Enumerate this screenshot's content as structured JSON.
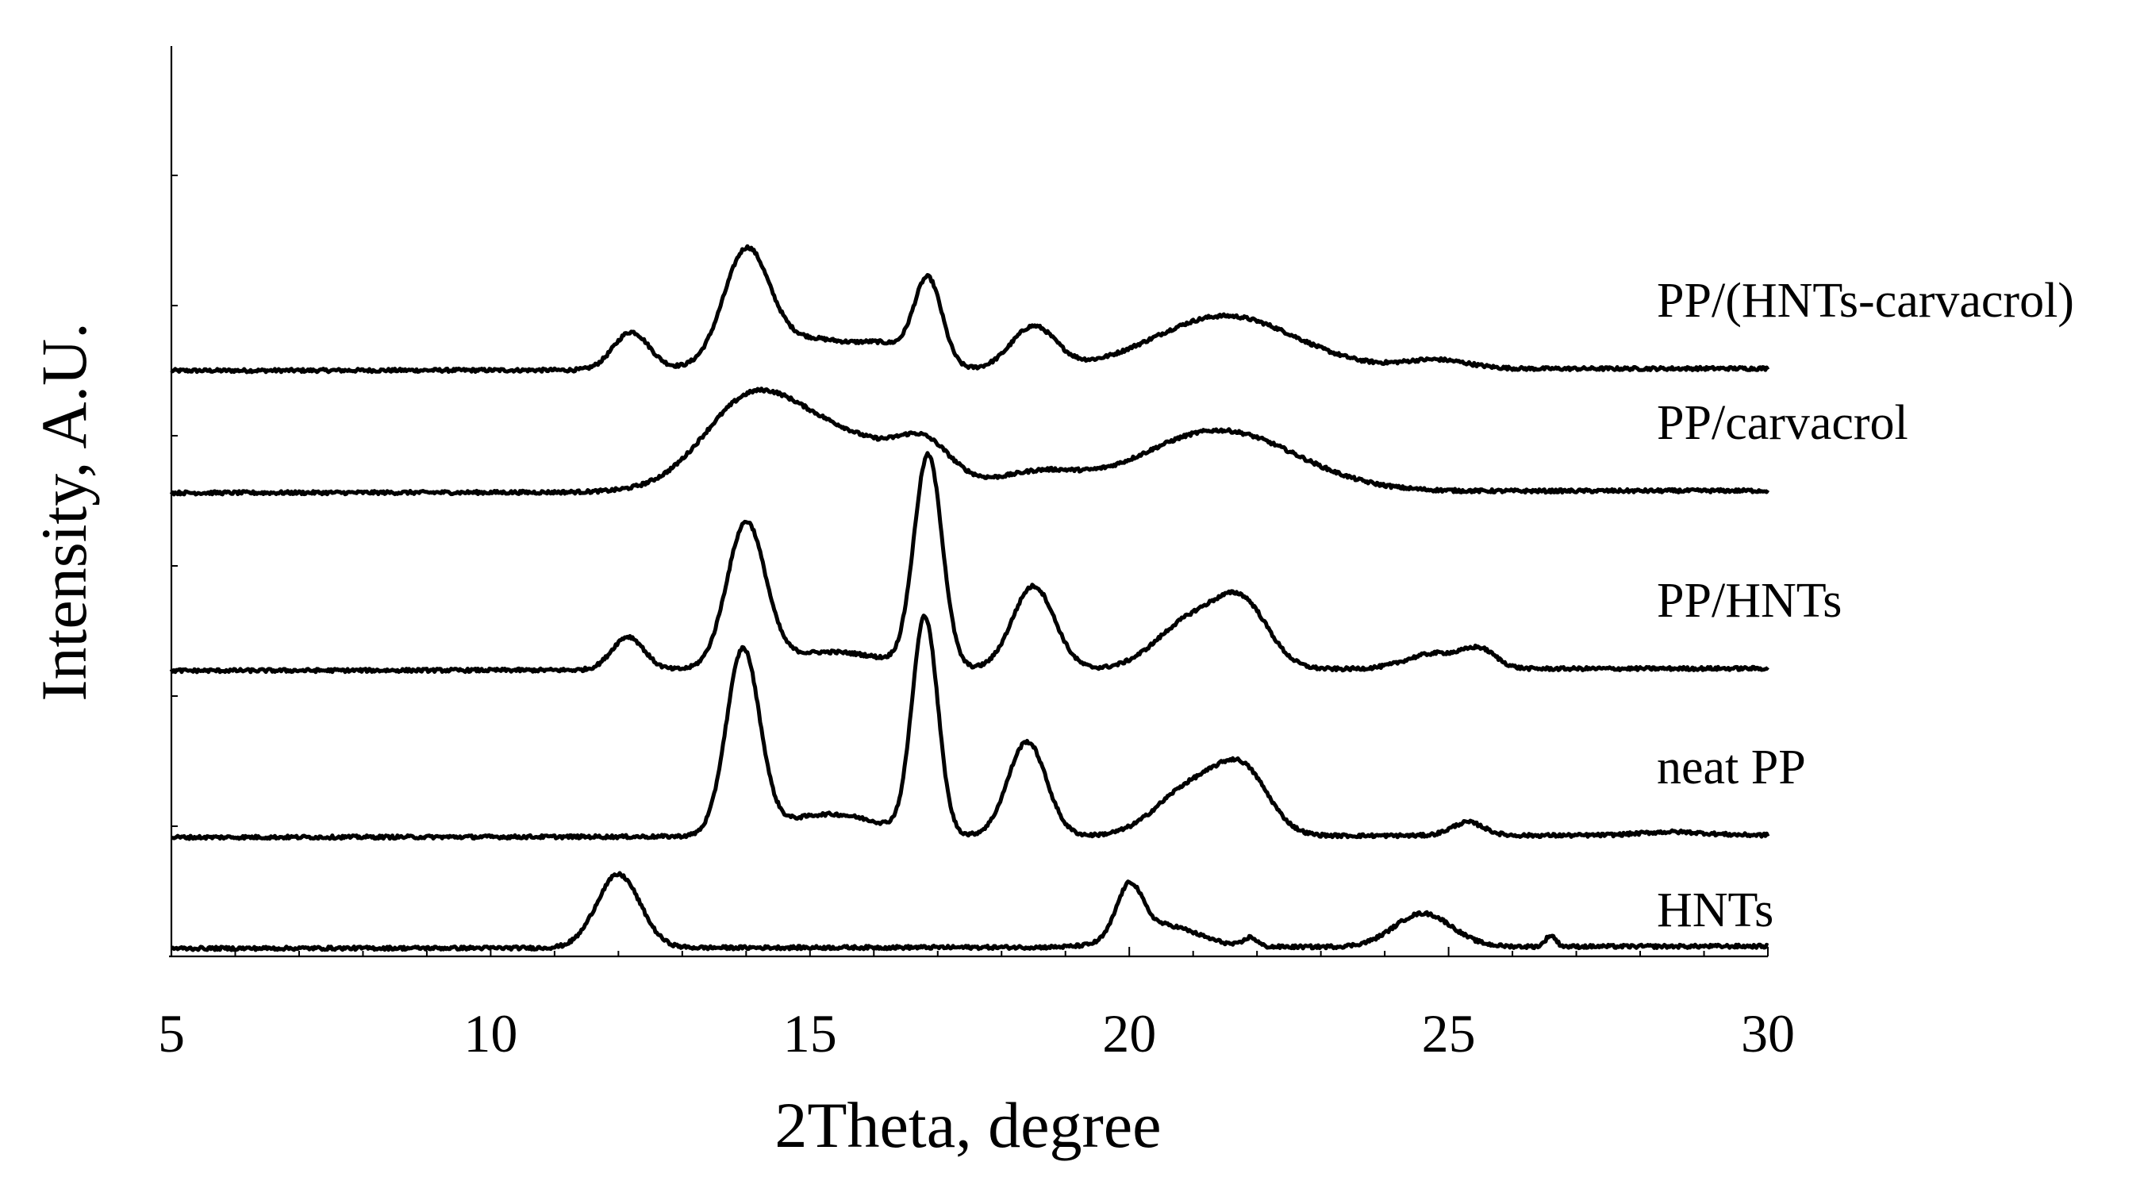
{
  "chart_data": {
    "type": "line",
    "title": "",
    "xlabel": "2Theta, degree",
    "ylabel": "Intensity, A.U.",
    "xlim": [
      5,
      30
    ],
    "xticks": [
      5,
      10,
      15,
      20,
      25,
      30
    ],
    "xtick_labels": [
      "5",
      "10",
      "15",
      "20",
      "25",
      "30"
    ],
    "y_axis": "arbitrary intensity, curves vertically offset",
    "grid": false,
    "legend": "labels at right end of each curve",
    "series": [
      {
        "name": "PP/(HNTs-carvacrol)",
        "offset": 5.2,
        "peaks": [
          [
            12.2,
            0.34,
            0.28
          ],
          [
            14.0,
            0.95,
            0.35
          ],
          [
            15.0,
            0.28,
            0.9
          ],
          [
            16.2,
            0.12,
            0.35
          ],
          [
            16.85,
            0.78,
            0.22
          ],
          [
            18.5,
            0.38,
            0.35
          ],
          [
            21.5,
            0.48,
            1.1
          ],
          [
            24.8,
            0.08,
            0.5
          ]
        ]
      },
      {
        "name": "PP/carvacrol",
        "offset": 4.1,
        "peaks": [
          [
            14.0,
            0.55,
            0.7
          ],
          [
            15.2,
            0.55,
            1.2
          ],
          [
            16.8,
            0.28,
            0.4
          ],
          [
            18.6,
            0.15,
            0.6
          ],
          [
            21.4,
            0.55,
            1.2
          ]
        ]
      },
      {
        "name": "PP/HNTs",
        "offset": 2.5,
        "peaks": [
          [
            12.15,
            0.3,
            0.25
          ],
          [
            14.0,
            1.28,
            0.3
          ],
          [
            15.3,
            0.16,
            0.9
          ],
          [
            16.85,
            1.9,
            0.22
          ],
          [
            18.5,
            0.75,
            0.33
          ],
          [
            21.0,
            0.45,
            0.55
          ],
          [
            21.8,
            0.5,
            0.4
          ],
          [
            24.8,
            0.14,
            0.45
          ],
          [
            25.5,
            0.15,
            0.25
          ]
        ]
      },
      {
        "name": "neat PP",
        "offset": 1.0,
        "peaks": [
          [
            13.95,
            1.65,
            0.26
          ],
          [
            15.3,
            0.2,
            0.8
          ],
          [
            16.8,
            1.95,
            0.2
          ],
          [
            18.4,
            0.85,
            0.3
          ],
          [
            21.0,
            0.45,
            0.55
          ],
          [
            21.8,
            0.5,
            0.4
          ],
          [
            25.3,
            0.12,
            0.25
          ],
          [
            28.5,
            0.03,
            0.5
          ]
        ]
      },
      {
        "name": "HNTs",
        "offset": 0.0,
        "peaks": [
          [
            12.0,
            0.66,
            0.34
          ],
          [
            20.0,
            0.45,
            0.2
          ],
          [
            20.5,
            0.2,
            0.55
          ],
          [
            21.9,
            0.08,
            0.1
          ],
          [
            24.6,
            0.3,
            0.45
          ],
          [
            26.6,
            0.1,
            0.08
          ]
        ]
      }
    ]
  }
}
